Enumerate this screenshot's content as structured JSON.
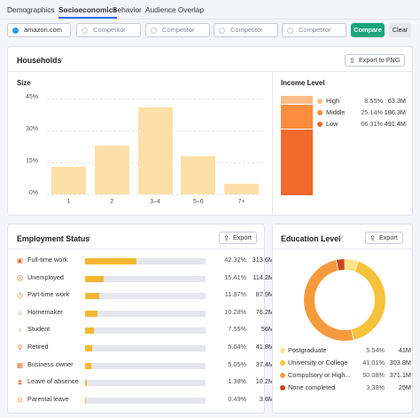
{
  "tabs": [
    "Demographics",
    "Socioeconomics",
    "Behavior",
    "Audience Overlap"
  ],
  "compare": {
    "domain": "amazon.com",
    "competitor_placeholder": "Competitor",
    "compare_label": "Compare",
    "clear_label": "Clear"
  },
  "households": {
    "title": "Households",
    "export_label": "Export to PNG",
    "size_label": "Size",
    "income_label": "Income Level",
    "income": [
      {
        "name": "High",
        "pct": "8.55%",
        "value": "63.3M",
        "color": "#fdbd88"
      },
      {
        "name": "Middle",
        "pct": "25.14%",
        "value": "186.3M",
        "color": "#fb8d3d"
      },
      {
        "name": "Low",
        "pct": "66.31%",
        "value": "491.4M",
        "color": "#f26a2b"
      }
    ]
  },
  "employment": {
    "title": "Employment Status",
    "export_label": "Export",
    "rows": [
      {
        "label": "Full-time work",
        "pct": "42.32%",
        "value": "313.6M",
        "fill": 0.4232
      },
      {
        "label": "Unemployed",
        "pct": "15.41%",
        "value": "114.2M",
        "fill": 0.1541
      },
      {
        "label": "Part-time work",
        "pct": "11.87%",
        "value": "87.9M",
        "fill": 0.1187
      },
      {
        "label": "Homemaker",
        "pct": "10.28%",
        "value": "76.2M",
        "fill": 0.1028
      },
      {
        "label": "Student",
        "pct": "7.55%",
        "value": "56M",
        "fill": 0.0755
      },
      {
        "label": "Retired",
        "pct": "5.64%",
        "value": "41.8M",
        "fill": 0.0564
      },
      {
        "label": "Business owner",
        "pct": "5.05%",
        "value": "37.4M",
        "fill": 0.0505
      },
      {
        "label": "Leave of absence",
        "pct": "1.38%",
        "value": "10.2M",
        "fill": 0.0138
      },
      {
        "label": "Parental leave",
        "pct": "0.49%",
        "value": "3.6M",
        "fill": 0.0049
      }
    ],
    "icons": [
      "briefcase-icon",
      "sad-face-icon",
      "clock-icon",
      "house-icon",
      "student-icon",
      "chair-icon",
      "building-icon",
      "hourglass-icon",
      "stroller-icon"
    ]
  },
  "education": {
    "title": "Education Level",
    "export_label": "Export",
    "rows": [
      {
        "label": "Postgraduate",
        "pct": "5.54%",
        "value": "41M",
        "color": "#fde38a"
      },
      {
        "label": "University or College",
        "pct": "41.01%",
        "value": "303.8M",
        "color": "#f5c33b"
      },
      {
        "label": "Compulsory or High...",
        "pct": "50.08%",
        "value": "371.1M",
        "color": "#f59a3d"
      },
      {
        "label": "None completed",
        "pct": "3.38%",
        "value": "25M",
        "color": "#c9451f"
      }
    ]
  },
  "chart_data": {
    "type": "bar",
    "title": "Size",
    "categories": [
      "1",
      "2",
      "3–4",
      "5–6",
      "7+"
    ],
    "values": [
      13,
      23,
      41,
      18,
      5
    ],
    "ylim": [
      0,
      45
    ],
    "yticks": [
      "0%",
      "15%",
      "30%",
      "45%"
    ],
    "color": "#fde0a8",
    "grid": true
  }
}
